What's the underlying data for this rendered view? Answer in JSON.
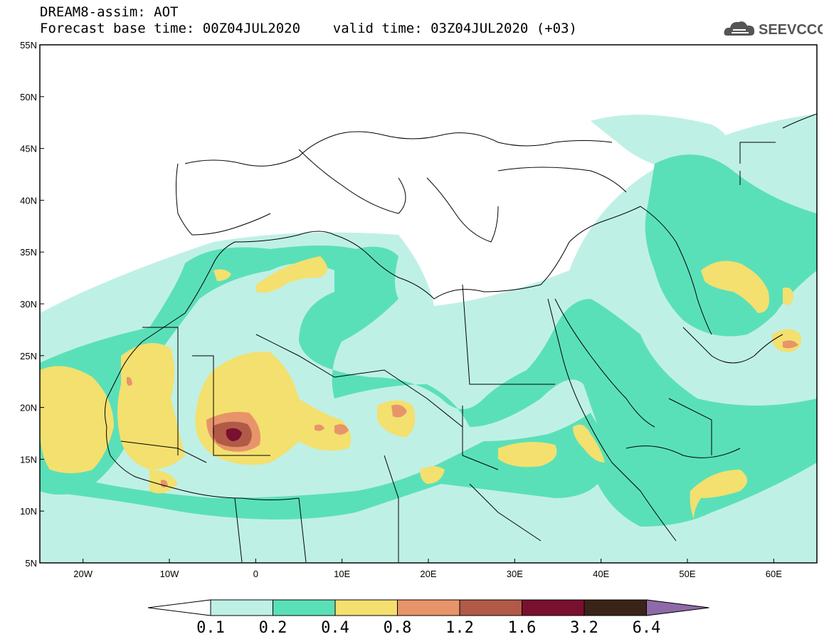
{
  "header": {
    "title_line1": "DREAM8-assim: AOT",
    "title_line2": "Forecast base time: 00Z04JUL2020    valid time: 03Z04JUL2020 (+03)"
  },
  "logo": {
    "text": "SEEVCCC",
    "icon": "cloud-icon"
  },
  "map": {
    "lat_labels": [
      "55N",
      "50N",
      "45N",
      "40N",
      "35N",
      "30N",
      "25N",
      "20N",
      "15N",
      "10N",
      "5N"
    ],
    "lon_labels": [
      "20W",
      "10W",
      "0",
      "10E",
      "20E",
      "30E",
      "40E",
      "50E",
      "60E"
    ],
    "lat_range": [
      5,
      55
    ],
    "lon_range": [
      -25,
      65
    ]
  },
  "colorbar": {
    "labels": [
      "0.1",
      "0.2",
      "0.4",
      "0.8",
      "1.2",
      "1.6",
      "3.2",
      "6.4"
    ],
    "colors": [
      "#bff0e6",
      "#5ae0b8",
      "#f3e06f",
      "#e8946a",
      "#b25a48",
      "#7a1030",
      "#3a2418",
      "#8e6aa8"
    ],
    "under_color": "#ffffff"
  }
}
